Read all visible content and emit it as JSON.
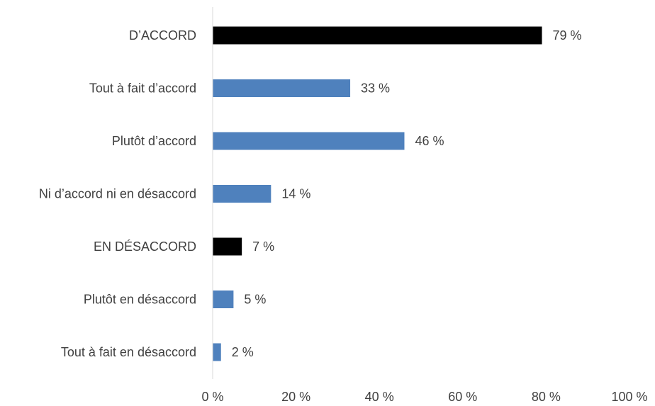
{
  "chart_data": {
    "type": "bar",
    "orientation": "horizontal",
    "title": "",
    "xlabel": "",
    "ylabel": "",
    "categories": [
      "D’ACCORD",
      "Tout à fait d’accord",
      "Plutôt d’accord",
      "Ni d’accord ni en désaccord",
      "EN DÉSACCORD",
      "Plutôt en désaccord",
      "Tout à fait en désaccord"
    ],
    "values": [
      79,
      33,
      46,
      14,
      7,
      5,
      2
    ],
    "value_labels": [
      "79 %",
      "33 %",
      "46 %",
      "14 %",
      "7 %",
      "5 %",
      "2 %"
    ],
    "bar_colors": [
      "#000000",
      "#4f81bd",
      "#4f81bd",
      "#4f81bd",
      "#000000",
      "#4f81bd",
      "#4f81bd"
    ],
    "xlim": [
      0,
      100
    ],
    "x_ticks": [
      0,
      20,
      40,
      60,
      80,
      100
    ],
    "x_tick_labels": [
      "0 %",
      "20 %",
      "40 %",
      "60 %",
      "80 %",
      "100 %"
    ],
    "grid": false,
    "legend": "none"
  }
}
